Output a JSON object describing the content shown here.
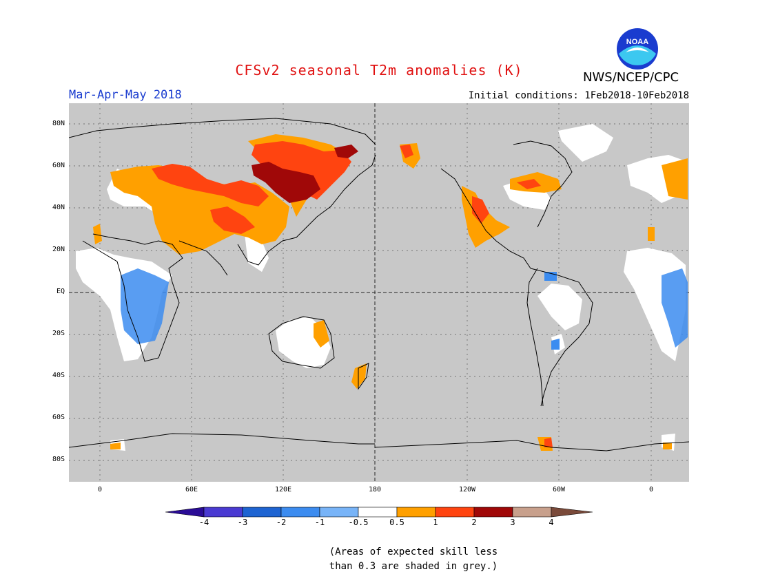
{
  "title": "CFSv2 seasonal T2m anomalies (K)",
  "organization": "NWS/NCEP/CPC",
  "logo_text": "NOAA",
  "season": "Mar-Apr-May 2018",
  "initial_conditions": "Initial conditions: 1Feb2018-10Feb2018",
  "lat_labels": [
    "80N",
    "60N",
    "40N",
    "20N",
    "EQ",
    "20S",
    "40S",
    "60S",
    "80S"
  ],
  "lon_labels": [
    "0",
    "60E",
    "120E",
    "180",
    "120W",
    "60W",
    "0"
  ],
  "legend": {
    "labels": [
      "-4",
      "-3",
      "-2",
      "-1",
      "-0.5",
      "0.5",
      "1",
      "2",
      "3",
      "4"
    ],
    "colors": [
      "#2a0c96",
      "#4a3ad2",
      "#1e64d2",
      "#3c8cf0",
      "#78b4f8",
      "#ffffff",
      "#ffa000",
      "#ff4410",
      "#a00808",
      "#c8a08c",
      "#7a4a3a"
    ]
  },
  "note_line1": "(Areas of expected skill less",
  "note_line2": "than 0.3 are shaded in grey.)",
  "colors": {
    "skill_grey": "#c8c8c8",
    "title": "#e01010",
    "season": "#1a3ccf"
  }
}
